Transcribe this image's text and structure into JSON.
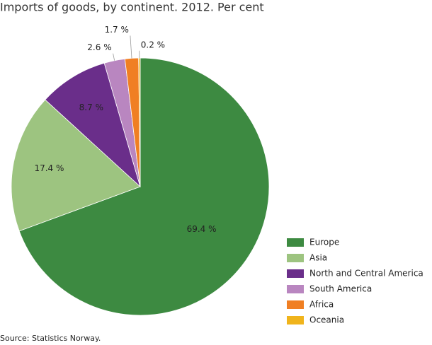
{
  "chart_data": {
    "type": "pie",
    "title": "Imports of goods, by continent. 2012. Per cent",
    "categories": [
      "Europe",
      "Asia",
      "North and Central America",
      "South America",
      "Africa",
      "Oceania"
    ],
    "values": [
      69.4,
      17.4,
      8.7,
      2.6,
      1.7,
      0.2
    ],
    "value_labels": [
      "69.4 %",
      "17.4 %",
      "8.7 %",
      "2.6 %",
      "1.7 %",
      "0.2 %"
    ],
    "colors": [
      "#3d8a41",
      "#9dc480",
      "#6a2e8a",
      "#b986c0",
      "#f07f23",
      "#f0b41c"
    ],
    "legend": "right",
    "source": "Source: Statistics Norway."
  }
}
